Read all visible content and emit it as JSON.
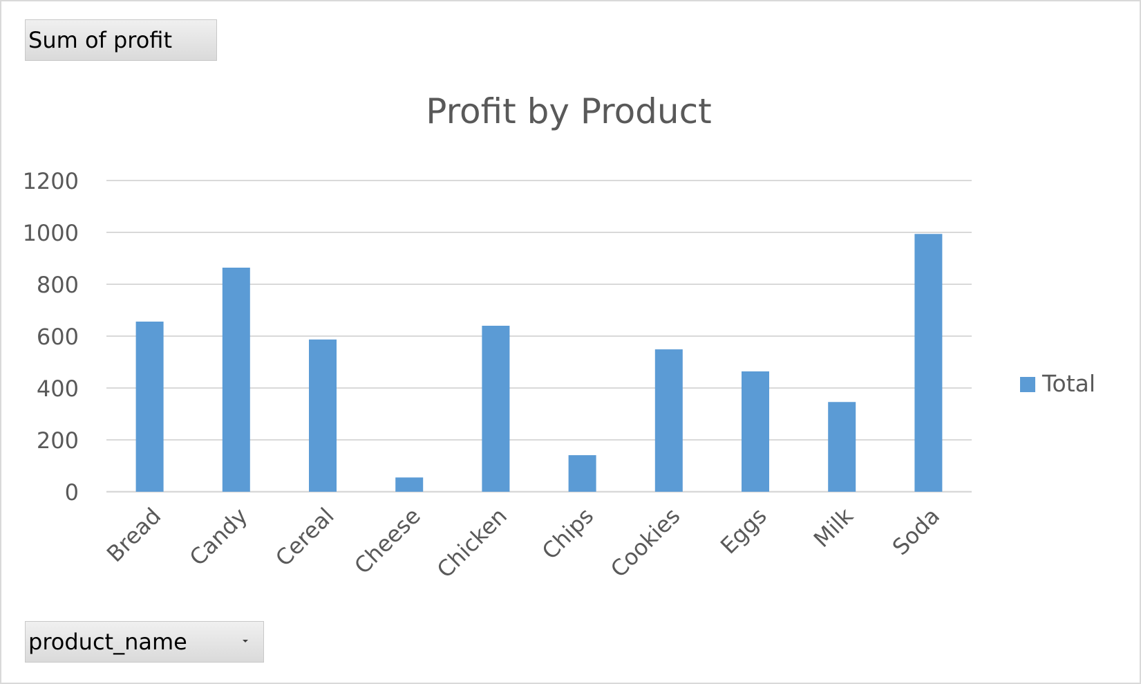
{
  "field_buttons": {
    "values": "Sum of profit",
    "axis": "product_name"
  },
  "colors": {
    "bar": "#5b9bd5",
    "grid": "#d9d9d9",
    "text": "#595959"
  },
  "chart_data": {
    "type": "bar",
    "title": "Profit by Product",
    "categories": [
      "Bread",
      "Candy",
      "Cereal",
      "Cheese",
      "Chicken",
      "Chips",
      "Cookies",
      "Eggs",
      "Milk",
      "Soda"
    ],
    "series": [
      {
        "name": "Total",
        "values": [
          656,
          864,
          587,
          55,
          640,
          141,
          549,
          464,
          346,
          994
        ]
      }
    ],
    "ylim": [
      0,
      1200
    ],
    "yticks": [
      0,
      200,
      400,
      600,
      800,
      1000,
      1200
    ],
    "grid": true,
    "legend_position": "right"
  }
}
